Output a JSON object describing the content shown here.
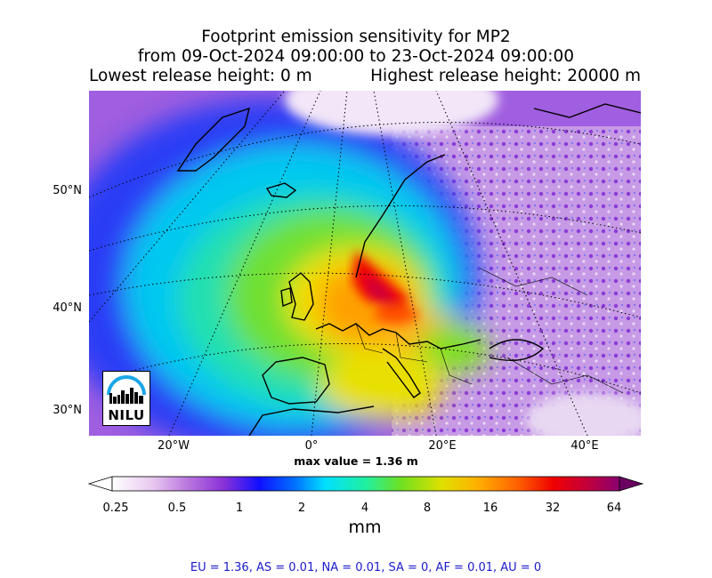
{
  "title": {
    "line1": "Footprint emission sensitivity for MP2",
    "line2": "from 09-Oct-2024 09:00:00 to 23-Oct-2024 09:00:00",
    "lowest": "Lowest release height: 0 m",
    "highest": "Highest release height: 20000 m"
  },
  "map": {
    "lat_labels": [
      "50°N",
      "40°N",
      "30°N"
    ],
    "lon_labels": [
      "20°W",
      "0°",
      "20°E",
      "40°E"
    ]
  },
  "max_value": "max value = 1.36 m",
  "colorbar": {
    "ticks": [
      "0.25",
      "0.5",
      "1",
      "2",
      "4",
      "8",
      "16",
      "32",
      "64"
    ],
    "unit": "mm",
    "colors": [
      "#ffffff",
      "#d8a8e8",
      "#9b30d0",
      "#1010ff",
      "#00a0ff",
      "#00f0f0",
      "#30e080",
      "#80e020",
      "#e0e000",
      "#ffa000",
      "#ff5000",
      "#f00000",
      "#c00040",
      "#8a0070"
    ]
  },
  "regions": "EU = 1.36,  AS = 0.01,  NA = 0.01,  SA = 0,  AF = 0.01,  AU = 0",
  "logo": {
    "text": "NILU"
  }
}
